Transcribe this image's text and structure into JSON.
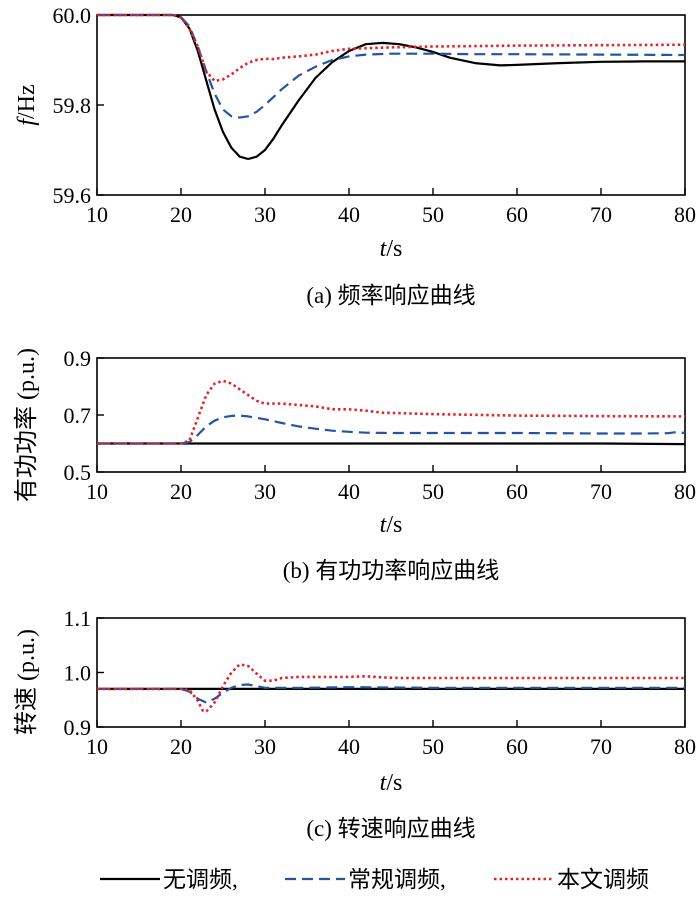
{
  "colors": {
    "no_regulation": "#000000",
    "conventional": "#2255a4",
    "proposed": "#e8202a"
  },
  "legend": {
    "placement": "bottom",
    "items": [
      {
        "label": "无调频,",
        "style": "solid",
        "color": "#000000"
      },
      {
        "label": "常规调频,",
        "style": "dashed",
        "color": "#2255a4"
      },
      {
        "label": "本文调频",
        "style": "dotted",
        "color": "#e8202a"
      }
    ]
  },
  "chart_data": [
    {
      "type": "line",
      "caption": "(a)  频率响应曲线",
      "xlabel_italic": "t",
      "xlabel_unit": "/s",
      "ylabel_italic": "f",
      "ylabel_unit": "/Hz",
      "xlim": [
        10,
        80
      ],
      "ylim": [
        59.6,
        60.0
      ],
      "xticks": [
        "10",
        "20",
        "30",
        "40",
        "50",
        "60",
        "70",
        "80"
      ],
      "yticks": [
        "59.6",
        "59.8",
        "60.0"
      ],
      "ytick_values": [
        59.6,
        59.8,
        60.0
      ],
      "grid": false,
      "series": [
        {
          "key": "no_regulation",
          "x": [
            10,
            19,
            20,
            21,
            22,
            23,
            24,
            25,
            26,
            27,
            28,
            29,
            30,
            31,
            32,
            34,
            36,
            38,
            40,
            42,
            44,
            46,
            48,
            50,
            52,
            55,
            58,
            60,
            65,
            70,
            75,
            80
          ],
          "y": [
            60.0,
            60.0,
            59.995,
            59.97,
            59.92,
            59.855,
            59.79,
            59.74,
            59.705,
            59.685,
            59.68,
            59.685,
            59.7,
            59.725,
            59.755,
            59.81,
            59.86,
            59.895,
            59.92,
            59.935,
            59.938,
            59.935,
            59.928,
            59.918,
            59.905,
            59.893,
            59.888,
            59.889,
            59.893,
            59.896,
            59.897,
            59.897
          ]
        },
        {
          "key": "conventional",
          "x": [
            10,
            19,
            20,
            21,
            22,
            23,
            24,
            25,
            26,
            27,
            28,
            29,
            30,
            32,
            34,
            36,
            38,
            40,
            42,
            45,
            50,
            55,
            60,
            70,
            80
          ],
          "y": [
            60.0,
            60.0,
            59.995,
            59.975,
            59.93,
            59.875,
            59.825,
            59.79,
            59.775,
            59.772,
            59.775,
            59.785,
            59.8,
            59.835,
            59.865,
            59.885,
            59.9,
            59.908,
            59.912,
            59.914,
            59.914,
            59.913,
            59.913,
            59.912,
            59.911
          ]
        },
        {
          "key": "proposed",
          "x": [
            10,
            19,
            20,
            21,
            22,
            23,
            24,
            25,
            26,
            27,
            28,
            29,
            30,
            31,
            32,
            34,
            36,
            38,
            40,
            45,
            50,
            55,
            60,
            70,
            80
          ],
          "y": [
            60.0,
            60.0,
            59.995,
            59.97,
            59.93,
            59.875,
            59.853,
            59.857,
            59.868,
            59.882,
            59.894,
            59.9,
            59.903,
            59.902,
            59.905,
            59.908,
            59.912,
            59.92,
            59.925,
            59.928,
            59.93,
            59.931,
            59.932,
            59.933,
            59.934
          ]
        }
      ]
    },
    {
      "type": "line",
      "caption": "(b)  有功功率响应曲线",
      "xlabel_italic": "t",
      "xlabel_unit": "/s",
      "ylabel": "有功功率  (p.u.)",
      "xlim": [
        10,
        80
      ],
      "ylim": [
        0.5,
        0.9
      ],
      "xticks": [
        "10",
        "20",
        "30",
        "40",
        "50",
        "60",
        "70",
        "80"
      ],
      "yticks": [
        "0.5",
        "0.7",
        "0.9"
      ],
      "ytick_values": [
        0.5,
        0.7,
        0.9
      ],
      "grid": false,
      "series": [
        {
          "key": "no_regulation",
          "x": [
            10,
            20,
            30,
            40,
            50,
            60,
            70,
            80
          ],
          "y": [
            0.6,
            0.6,
            0.6,
            0.6,
            0.6,
            0.6,
            0.6,
            0.598
          ]
        },
        {
          "key": "conventional",
          "x": [
            10,
            20,
            21,
            22,
            23,
            24,
            25,
            26,
            27,
            28,
            30,
            32,
            34,
            36,
            38,
            40,
            42,
            45,
            50,
            55,
            60,
            65,
            70,
            75,
            78,
            79,
            80
          ],
          "y": [
            0.6,
            0.6,
            0.605,
            0.63,
            0.66,
            0.68,
            0.692,
            0.697,
            0.698,
            0.695,
            0.685,
            0.672,
            0.66,
            0.652,
            0.645,
            0.641,
            0.638,
            0.637,
            0.637,
            0.637,
            0.637,
            0.636,
            0.635,
            0.635,
            0.636,
            0.64,
            0.637
          ]
        },
        {
          "key": "proposed",
          "x": [
            10,
            20,
            21,
            22,
            23,
            24,
            25,
            26,
            27,
            28,
            29,
            30,
            32,
            34,
            36,
            38,
            40,
            42,
            44,
            50,
            60,
            70,
            80
          ],
          "y": [
            0.6,
            0.6,
            0.61,
            0.69,
            0.77,
            0.81,
            0.82,
            0.81,
            0.79,
            0.77,
            0.75,
            0.74,
            0.74,
            0.735,
            0.73,
            0.72,
            0.72,
            0.715,
            0.708,
            0.703,
            0.698,
            0.696,
            0.695
          ]
        }
      ]
    },
    {
      "type": "line",
      "caption": "(c)  转速响应曲线",
      "xlabel_italic": "t",
      "xlabel_unit": "/s",
      "ylabel": "转速  (p.u.)",
      "xlim": [
        10,
        80
      ],
      "ylim": [
        0.9,
        1.1
      ],
      "xticks": [
        "10",
        "20",
        "30",
        "40",
        "50",
        "60",
        "70",
        "80"
      ],
      "yticks": [
        "0.9",
        "1.0",
        "1.1"
      ],
      "ytick_values": [
        0.9,
        1.0,
        1.1
      ],
      "grid": false,
      "series": [
        {
          "key": "no_regulation",
          "x": [
            10,
            20,
            30,
            40,
            50,
            60,
            70,
            80
          ],
          "y": [
            0.97,
            0.97,
            0.97,
            0.97,
            0.97,
            0.97,
            0.97,
            0.97
          ]
        },
        {
          "key": "conventional",
          "x": [
            10,
            20,
            21,
            22,
            23,
            24,
            25,
            26,
            27,
            28,
            29,
            30,
            32,
            35,
            40,
            50,
            60,
            70,
            80
          ],
          "y": [
            0.97,
            0.97,
            0.965,
            0.952,
            0.945,
            0.952,
            0.963,
            0.972,
            0.977,
            0.978,
            0.975,
            0.972,
            0.972,
            0.972,
            0.973,
            0.972,
            0.972,
            0.972,
            0.972
          ]
        },
        {
          "key": "proposed",
          "x": [
            10,
            20,
            21,
            22,
            22.6,
            23,
            24,
            25,
            26,
            27,
            28,
            29,
            30,
            31,
            32,
            34,
            36,
            40,
            42,
            44,
            46,
            50,
            60,
            70,
            80
          ],
          "y": [
            0.97,
            0.97,
            0.968,
            0.948,
            0.93,
            0.928,
            0.945,
            0.975,
            1.0,
            1.015,
            1.012,
            0.998,
            0.985,
            0.985,
            0.99,
            0.992,
            0.992,
            0.992,
            0.993,
            0.991,
            0.99,
            0.99,
            0.99,
            0.99,
            0.99
          ]
        }
      ]
    }
  ]
}
